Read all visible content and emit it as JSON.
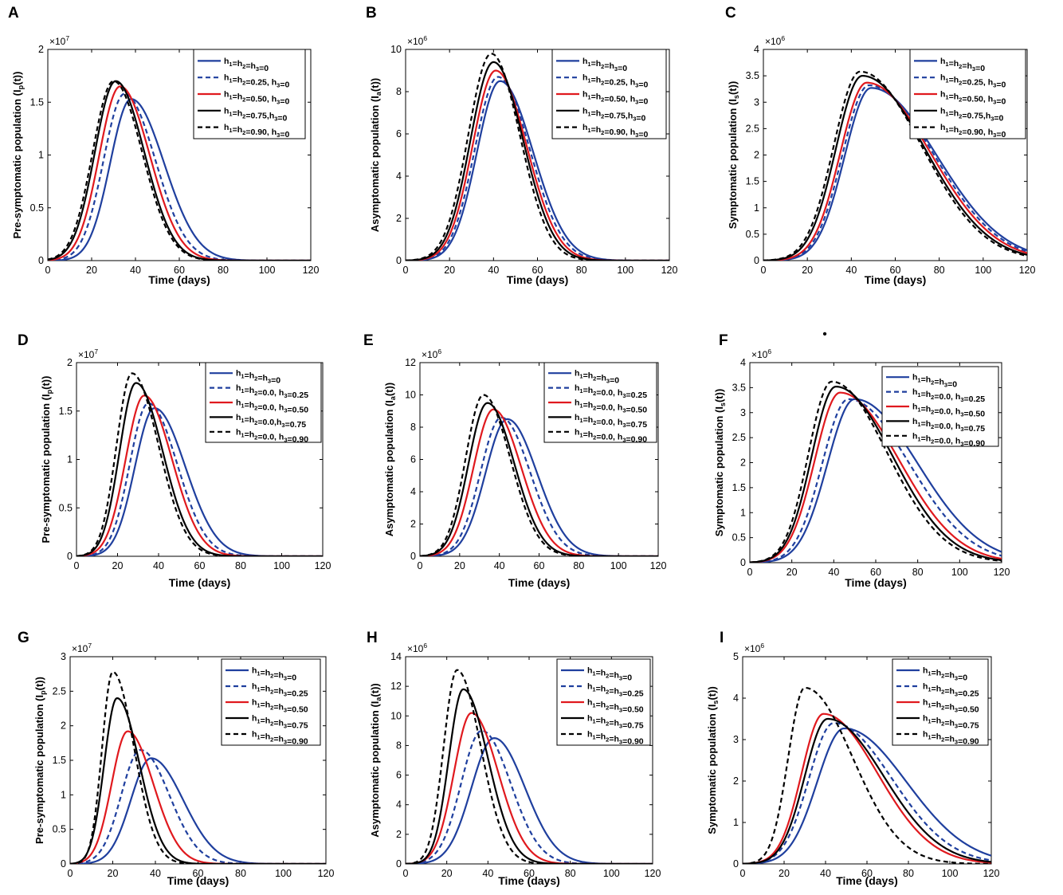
{
  "figure": {
    "stray_dot": "•"
  },
  "chart_data": [
    {
      "panel": "A",
      "type": "line",
      "xlabel": "Time (days)",
      "ylabel_main": "Pre-symptomatic population (I",
      "ylabel_sub": "p",
      "ylabel_tail": "(t))",
      "xlim": [
        0,
        120
      ],
      "xticks": [
        0,
        20,
        40,
        60,
        80,
        100,
        120
      ],
      "ylim": [
        0,
        2
      ],
      "yticks": [
        0,
        0.5,
        1,
        1.5,
        2
      ],
      "ytick_labels": [
        "0",
        "0.5",
        "1",
        "1.5",
        "2"
      ],
      "exponent_base": "×10",
      "exponent_power": "7",
      "legend_group": "h1h2",
      "series": [
        {
          "name": "h1=h2=h3=0",
          "color": "#1f3f9e",
          "dash": "solid",
          "peak": 1.53,
          "peak_day": 38,
          "rise": 9.5,
          "fall": 15
        },
        {
          "name": "h1=h2=0.25, h3=0",
          "color": "#1f3f9e",
          "dash": "dashed",
          "peak": 1.58,
          "peak_day": 35,
          "rise": 9.5,
          "fall": 14
        },
        {
          "name": "h1=h2=0.50, h3=0",
          "color": "#e0191e",
          "dash": "solid",
          "peak": 1.65,
          "peak_day": 33,
          "rise": 9.5,
          "fall": 13.5
        },
        {
          "name": "h1=h2=0.75,h3=0",
          "color": "#000000",
          "dash": "solid",
          "peak": 1.7,
          "peak_day": 31,
          "rise": 9.5,
          "fall": 13
        },
        {
          "name": "h1=h2=0.90, h3=0",
          "color": "#000000",
          "dash": "dashed",
          "peak": 1.7,
          "peak_day": 30,
          "rise": 9.5,
          "fall": 13
        }
      ]
    },
    {
      "panel": "B",
      "type": "line",
      "xlabel": "Time (days)",
      "ylabel_main": "Asymptomatic population (I",
      "ylabel_sub": "a",
      "ylabel_tail": "(t))",
      "xlim": [
        0,
        120
      ],
      "xticks": [
        0,
        20,
        40,
        60,
        80,
        100,
        120
      ],
      "ylim": [
        0,
        10
      ],
      "yticks": [
        0,
        2,
        4,
        6,
        8,
        10
      ],
      "ytick_labels": [
        "0",
        "2",
        "4",
        "6",
        "8",
        "10"
      ],
      "exponent_base": "×10",
      "exponent_power": "6",
      "legend_group": "h1h2",
      "series": [
        {
          "name": "h1=h2=h3=0",
          "color": "#1f3f9e",
          "dash": "solid",
          "peak": 8.5,
          "peak_day": 43,
          "rise": 10.5,
          "fall": 15
        },
        {
          "name": "h1=h2=0.25, h3=0",
          "color": "#1f3f9e",
          "dash": "dashed",
          "peak": 8.7,
          "peak_day": 42,
          "rise": 10.5,
          "fall": 14.5
        },
        {
          "name": "h1=h2=0.50, h3=0",
          "color": "#e0191e",
          "dash": "solid",
          "peak": 9.0,
          "peak_day": 41,
          "rise": 10.5,
          "fall": 14
        },
        {
          "name": "h1=h2=0.75,h3=0",
          "color": "#000000",
          "dash": "solid",
          "peak": 9.4,
          "peak_day": 40,
          "rise": 10.5,
          "fall": 13.5
        },
        {
          "name": "h1=h2=0.90, h3=0",
          "color": "#000000",
          "dash": "dashed",
          "peak": 9.8,
          "peak_day": 39,
          "rise": 10.5,
          "fall": 13
        }
      ]
    },
    {
      "panel": "C",
      "type": "line",
      "xlabel": "Time (days)",
      "ylabel_main": "Symptomatic population (I",
      "ylabel_sub": "s",
      "ylabel_tail": "(t))",
      "xlim": [
        0,
        120
      ],
      "xticks": [
        0,
        20,
        40,
        60,
        80,
        100,
        120
      ],
      "ylim": [
        0,
        4
      ],
      "yticks": [
        0,
        0.5,
        1,
        1.5,
        2,
        2.5,
        3,
        3.5,
        4
      ],
      "ytick_labels": [
        "0",
        "0.5",
        "1",
        "1.5",
        "2",
        "2.5",
        "3",
        "3.5",
        "4"
      ],
      "exponent_base": "×10",
      "exponent_power": "6",
      "legend_group": "h1h2",
      "series": [
        {
          "name": "h1=h2=h3=0",
          "color": "#1f3f9e",
          "dash": "solid",
          "peak": 3.27,
          "peak_day": 49,
          "rise": 12,
          "fall": 30
        },
        {
          "name": "h1=h2=0.25, h3=0",
          "color": "#1f3f9e",
          "dash": "dashed",
          "peak": 3.32,
          "peak_day": 48,
          "rise": 12,
          "fall": 29.5
        },
        {
          "name": "h1=h2=0.50, h3=0",
          "color": "#e0191e",
          "dash": "solid",
          "peak": 3.37,
          "peak_day": 47,
          "rise": 12,
          "fall": 29
        },
        {
          "name": "h1=h2=0.75,h3=0",
          "color": "#000000",
          "dash": "solid",
          "peak": 3.5,
          "peak_day": 45,
          "rise": 12,
          "fall": 28.5
        },
        {
          "name": "h1=h2=0.90, h3=0",
          "color": "#000000",
          "dash": "dashed",
          "peak": 3.58,
          "peak_day": 44,
          "rise": 12,
          "fall": 28
        }
      ]
    },
    {
      "panel": "D",
      "type": "line",
      "xlabel": "Time (days)",
      "ylabel_main": "Pre-symptomatic population (I",
      "ylabel_sub": "p",
      "ylabel_tail": "(t))",
      "xlim": [
        0,
        120
      ],
      "xticks": [
        0,
        20,
        40,
        60,
        80,
        100,
        120
      ],
      "ylim": [
        0,
        2
      ],
      "yticks": [
        0,
        0.5,
        1,
        1.5,
        2
      ],
      "ytick_labels": [
        "0",
        "0.5",
        "1",
        "1.5",
        "2"
      ],
      "exponent_base": "×10",
      "exponent_power": "7",
      "legend_group": "h3",
      "series": [
        {
          "name": "h1=h2=h3=0",
          "color": "#1f3f9e",
          "dash": "solid",
          "peak": 1.53,
          "peak_day": 38,
          "rise": 9.5,
          "fall": 15
        },
        {
          "name": "h1=h2=0.0, h3=0.25",
          "color": "#1f3f9e",
          "dash": "dashed",
          "peak": 1.58,
          "peak_day": 35,
          "rise": 9,
          "fall": 14
        },
        {
          "name": "h1=h2=0.0, h3=0.50",
          "color": "#e0191e",
          "dash": "solid",
          "peak": 1.66,
          "peak_day": 33,
          "rise": 9,
          "fall": 13.5
        },
        {
          "name": "h1=h2=0.0,h3=0.75",
          "color": "#000000",
          "dash": "solid",
          "peak": 1.79,
          "peak_day": 29,
          "rise": 8,
          "fall": 13
        },
        {
          "name": "h1=h2=0.0, h3=0.90",
          "color": "#000000",
          "dash": "dashed",
          "peak": 1.89,
          "peak_day": 27,
          "rise": 7.5,
          "fall": 13
        }
      ]
    },
    {
      "panel": "E",
      "type": "line",
      "xlabel": "Time (days)",
      "ylabel_main": "Asymptomatic population (I",
      "ylabel_sub": "a",
      "ylabel_tail": "(t))",
      "xlim": [
        0,
        120
      ],
      "xticks": [
        0,
        20,
        40,
        60,
        80,
        100,
        120
      ],
      "ylim": [
        0,
        12
      ],
      "yticks": [
        0,
        2,
        4,
        6,
        8,
        10,
        12
      ],
      "ytick_labels": [
        "0",
        "2",
        "4",
        "6",
        "8",
        "10",
        "12"
      ],
      "exponent_base": "×10",
      "exponent_power": "6",
      "legend_group": "h3",
      "series": [
        {
          "name": "h1=h2=h3=0",
          "color": "#1f3f9e",
          "dash": "solid",
          "peak": 8.5,
          "peak_day": 44,
          "rise": 11,
          "fall": 15
        },
        {
          "name": "h1=h2=0.0, h3=0.25",
          "color": "#1f3f9e",
          "dash": "dashed",
          "peak": 8.6,
          "peak_day": 41,
          "rise": 10.5,
          "fall": 14.5
        },
        {
          "name": "h1=h2=0.0, h3=0.50",
          "color": "#e0191e",
          "dash": "solid",
          "peak": 9.1,
          "peak_day": 37,
          "rise": 10,
          "fall": 14
        },
        {
          "name": "h1=h2=0.0, h3=0.75",
          "color": "#000000",
          "dash": "solid",
          "peak": 9.5,
          "peak_day": 34,
          "rise": 9.5,
          "fall": 13.5
        },
        {
          "name": "h1=h2=0.0, h3=0.90",
          "color": "#000000",
          "dash": "dashed",
          "peak": 10.0,
          "peak_day": 32,
          "rise": 9,
          "fall": 13.5
        }
      ]
    },
    {
      "panel": "F",
      "type": "line",
      "xlabel": "Time (days)",
      "ylabel_main": "Symptomatic population (I",
      "ylabel_sub": "s",
      "ylabel_tail": "(t))",
      "xlim": [
        0,
        120
      ],
      "xticks": [
        0,
        20,
        40,
        60,
        80,
        100,
        120
      ],
      "ylim": [
        0,
        4
      ],
      "yticks": [
        0,
        0.5,
        1,
        1.5,
        2,
        2.5,
        3,
        3.5,
        4
      ],
      "ytick_labels": [
        "0",
        "0.5",
        "1",
        "1.5",
        "2",
        "2.5",
        "3",
        "3.5",
        "4"
      ],
      "exponent_base": "×10",
      "exponent_power": "6",
      "legend_group": "h3",
      "series": [
        {
          "name": "h1=h2=h3=0",
          "color": "#1f3f9e",
          "dash": "solid",
          "peak": 3.27,
          "peak_day": 50,
          "rise": 13,
          "fall": 30
        },
        {
          "name": "h1=h2=0.0, h3=0.25",
          "color": "#1f3f9e",
          "dash": "dashed",
          "peak": 3.27,
          "peak_day": 47,
          "rise": 12.5,
          "fall": 29
        },
        {
          "name": "h1=h2=0.0, h3=0.50",
          "color": "#e0191e",
          "dash": "solid",
          "peak": 3.4,
          "peak_day": 43,
          "rise": 12,
          "fall": 28
        },
        {
          "name": "h1=h2=0.0, h3=0.75",
          "color": "#000000",
          "dash": "solid",
          "peak": 3.52,
          "peak_day": 41,
          "rise": 11.5,
          "fall": 27
        },
        {
          "name": "h1=h2=0.0, h3=0.90",
          "color": "#000000",
          "dash": "dashed",
          "peak": 3.62,
          "peak_day": 39,
          "rise": 11,
          "fall": 26.5
        }
      ]
    },
    {
      "panel": "G",
      "type": "line",
      "xlabel": "Time (days)",
      "ylabel_main": "Pre-symptomatic population (I",
      "ylabel_sub": "p",
      "ylabel_tail": "(t))",
      "xlim": [
        0,
        120
      ],
      "xticks": [
        0,
        20,
        40,
        60,
        80,
        100,
        120
      ],
      "ylim": [
        0,
        3
      ],
      "yticks": [
        0,
        0.5,
        1,
        1.5,
        2,
        2.5,
        3
      ],
      "ytick_labels": [
        "0",
        "0.5",
        "1",
        "1.5",
        "2",
        "2.5",
        "3"
      ],
      "exponent_base": "×10",
      "exponent_power": "7",
      "legend_group": "all",
      "series": [
        {
          "name": "h1=h2=h3=0",
          "color": "#1f3f9e",
          "dash": "solid",
          "peak": 1.53,
          "peak_day": 38,
          "rise": 9.5,
          "fall": 15
        },
        {
          "name": "h1=h2=h3=0.25",
          "color": "#1f3f9e",
          "dash": "dashed",
          "peak": 1.65,
          "peak_day": 33,
          "rise": 9,
          "fall": 13.5
        },
        {
          "name": "h1=h2=h3=0.50",
          "color": "#e0191e",
          "dash": "solid",
          "peak": 1.92,
          "peak_day": 27,
          "rise": 7.5,
          "fall": 12
        },
        {
          "name": "h1=h2=h3=0.75",
          "color": "#000000",
          "dash": "solid",
          "peak": 2.4,
          "peak_day": 22,
          "rise": 6,
          "fall": 10.5
        },
        {
          "name": "h1=h2=h3=0.90",
          "color": "#000000",
          "dash": "dashed",
          "peak": 2.78,
          "peak_day": 20,
          "rise": 5,
          "fall": 10
        }
      ]
    },
    {
      "panel": "H",
      "type": "line",
      "xlabel": "Time (days)",
      "ylabel_main": "Asymptomatic population (I",
      "ylabel_sub": "a",
      "ylabel_tail": "(t))",
      "xlim": [
        0,
        120
      ],
      "xticks": [
        0,
        20,
        40,
        60,
        80,
        100,
        120
      ],
      "ylim": [
        0,
        14
      ],
      "yticks": [
        0,
        2,
        4,
        6,
        8,
        10,
        12,
        14
      ],
      "ytick_labels": [
        "0",
        "2",
        "4",
        "6",
        "8",
        "10",
        "12",
        "14"
      ],
      "exponent_base": "×10",
      "exponent_power": "6",
      "legend_group": "all",
      "series": [
        {
          "name": "h1=h2=h3=0",
          "color": "#1f3f9e",
          "dash": "solid",
          "peak": 8.5,
          "peak_day": 43,
          "rise": 11,
          "fall": 15
        },
        {
          "name": "h1=h2=h3=0.25",
          "color": "#1f3f9e",
          "dash": "dashed",
          "peak": 9.0,
          "peak_day": 37,
          "rise": 10,
          "fall": 14
        },
        {
          "name": "h1=h2=h3=0.50",
          "color": "#e0191e",
          "dash": "solid",
          "peak": 10.2,
          "peak_day": 32,
          "rise": 8.5,
          "fall": 13
        },
        {
          "name": "h1=h2=h3=0.75",
          "color": "#000000",
          "dash": "solid",
          "peak": 11.8,
          "peak_day": 28,
          "rise": 7,
          "fall": 12
        },
        {
          "name": "h1=h2=h3=0.90",
          "color": "#000000",
          "dash": "dashed",
          "peak": 13.1,
          "peak_day": 25,
          "rise": 6.5,
          "fall": 11.5
        }
      ]
    },
    {
      "panel": "I",
      "type": "line",
      "xlabel": "Time (days)",
      "ylabel_main": "Symptomatic population (I",
      "ylabel_sub": "s",
      "ylabel_tail": "(t))",
      "xlim": [
        0,
        120
      ],
      "xticks": [
        0,
        20,
        40,
        60,
        80,
        100,
        120
      ],
      "ylim": [
        0,
        5
      ],
      "yticks": [
        0,
        1,
        2,
        3,
        4,
        5
      ],
      "ytick_labels": [
        "0",
        "1",
        "2",
        "3",
        "4",
        "5"
      ],
      "exponent_base": "×10",
      "exponent_power": "6",
      "legend_group": "all",
      "series": [
        {
          "name": "h1=h2=h3=0",
          "color": "#1f3f9e",
          "dash": "solid",
          "peak": 3.27,
          "peak_day": 49,
          "rise": 13,
          "fall": 30
        },
        {
          "name": "h1=h2=h3=0.25",
          "color": "#1f3f9e",
          "dash": "dashed",
          "peak": 3.4,
          "peak_day": 44,
          "rise": 12,
          "fall": 28
        },
        {
          "name": "h1=h2=h3=0.50",
          "color": "#e0191e",
          "dash": "solid",
          "peak": 3.62,
          "peak_day": 39,
          "rise": 10.5,
          "fall": 26
        },
        {
          "name": "h1=h2=h3=0.75",
          "color": "#000000",
          "dash": "solid",
          "peak": 3.5,
          "peak_day": 41,
          "rise": 11,
          "fall": 27
        },
        {
          "name": "h1=h2=h3=0.90",
          "color": "#000000",
          "dash": "dashed",
          "peak": 4.25,
          "peak_day": 30,
          "rise": 8,
          "fall": 23
        }
      ]
    }
  ]
}
